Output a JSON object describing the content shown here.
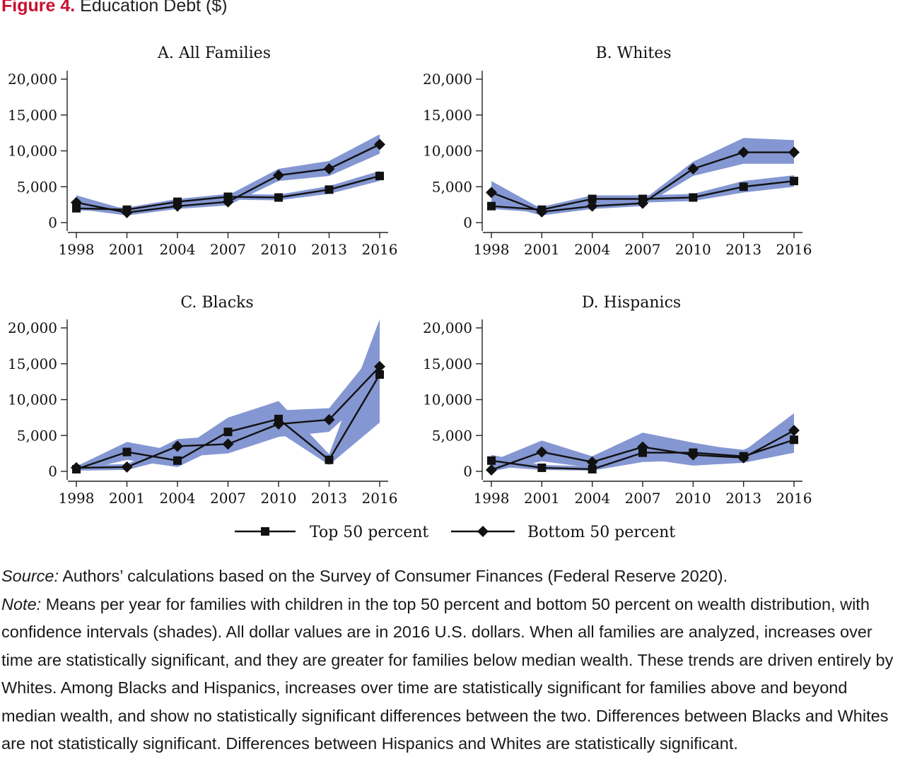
{
  "figure": {
    "label": "Figure 4.",
    "title": "Education Debt ($)"
  },
  "chart_data": [
    {
      "type": "line",
      "title": "A. All Families",
      "x": [
        1998,
        2001,
        2004,
        2007,
        2010,
        2013,
        2016
      ],
      "ylim": [
        0,
        20000
      ],
      "yticks": [
        0,
        5000,
        10000,
        15000,
        20000
      ],
      "ytick_labels": [
        "0",
        "5,000",
        "10,000",
        "15,000",
        "20,000"
      ],
      "series": [
        {
          "name": "Top 50 percent",
          "marker": "square",
          "values": [
            2000,
            1800,
            2900,
            3600,
            3500,
            4600,
            6500
          ],
          "ci_lower": [
            1700,
            1500,
            2500,
            3200,
            3100,
            4000,
            5800
          ],
          "ci_upper": [
            2300,
            2100,
            3300,
            4000,
            3900,
            5100,
            7200
          ]
        },
        {
          "name": "Bottom 50 percent",
          "marker": "diamond",
          "values": [
            2800,
            1400,
            2300,
            2900,
            6600,
            7500,
            10900
          ],
          "ci_lower": [
            1900,
            1000,
            1900,
            2400,
            5800,
            6500,
            9600
          ],
          "ci_upper": [
            3800,
            1800,
            3000,
            3800,
            7500,
            8600,
            12300
          ]
        }
      ]
    },
    {
      "type": "line",
      "title": "B. Whites",
      "x": [
        1998,
        2001,
        2004,
        2007,
        2010,
        2013,
        2016
      ],
      "ylim": [
        0,
        20000
      ],
      "yticks": [
        0,
        5000,
        10000,
        15000,
        20000
      ],
      "ytick_labels": [
        "0",
        "5,000",
        "10,000",
        "15,000",
        "20,000"
      ],
      "series": [
        {
          "name": "Top 50 percent",
          "marker": "square",
          "values": [
            2300,
            1800,
            3300,
            3300,
            3500,
            5000,
            5800
          ],
          "ci_lower": [
            1900,
            1400,
            2800,
            2800,
            3000,
            4200,
            5000
          ],
          "ci_upper": [
            2700,
            2200,
            3800,
            3800,
            4000,
            5800,
            6600
          ]
        },
        {
          "name": "Bottom 50 percent",
          "marker": "diamond",
          "values": [
            4200,
            1500,
            2300,
            2700,
            7500,
            9800,
            9800
          ],
          "ci_lower": [
            2800,
            1000,
            1900,
            2300,
            6500,
            8200,
            8200
          ],
          "ci_upper": [
            5800,
            1900,
            3000,
            3100,
            8500,
            11800,
            11500
          ]
        }
      ]
    },
    {
      "type": "line",
      "title": "C. Blacks",
      "x": [
        1998,
        2001,
        2004,
        2007,
        2010,
        2013,
        2016
      ],
      "ylim": [
        0,
        20000
      ],
      "yticks": [
        0,
        5000,
        10000,
        15000,
        20000
      ],
      "ytick_labels": [
        "0",
        "5,000",
        "10,000",
        "15,000",
        "20,000"
      ],
      "series": [
        {
          "name": "Top 50 percent",
          "marker": "square",
          "values": [
            300,
            2700,
            1500,
            5500,
            7300,
            1600,
            13500
          ],
          "ci_lower": [
            0,
            1600,
            600,
            4000,
            5500,
            900,
            6800
          ],
          "ci_upper": [
            700,
            4100,
            2800,
            7500,
            9800,
            2400,
            21200
          ]
        },
        {
          "name": "Bottom 50 percent",
          "marker": "diamond",
          "values": [
            500,
            600,
            3500,
            3800,
            6600,
            7200,
            14600
          ],
          "ci_lower": [
            100,
            200,
            2000,
            2500,
            4800,
            5500,
            12000
          ],
          "ci_upper": [
            900,
            1000,
            4500,
            5000,
            8500,
            8800,
            17500
          ]
        }
      ]
    },
    {
      "type": "line",
      "title": "D. Hispanics",
      "x": [
        1998,
        2001,
        2004,
        2007,
        2010,
        2013,
        2016
      ],
      "ylim": [
        0,
        20000
      ],
      "yticks": [
        0,
        5000,
        10000,
        15000,
        20000
      ],
      "ytick_labels": [
        "0",
        "5,000",
        "10,000",
        "15,000",
        "20,000"
      ],
      "series": [
        {
          "name": "Top 50 percent",
          "marker": "square",
          "values": [
            1500,
            500,
            300,
            2600,
            2600,
            2100,
            4400
          ],
          "ci_lower": [
            700,
            200,
            100,
            1300,
            1500,
            1200,
            2600
          ],
          "ci_upper": [
            2300,
            900,
            700,
            3900,
            3800,
            3000,
            6200
          ]
        },
        {
          "name": "Bottom 50 percent",
          "marker": "diamond",
          "values": [
            200,
            2700,
            1300,
            3400,
            2300,
            1900,
            5700
          ],
          "ci_lower": [
            0,
            1400,
            500,
            1800,
            800,
            1200,
            3800
          ],
          "ci_upper": [
            1400,
            4300,
            2100,
            5400,
            4000,
            2800,
            8100
          ]
        }
      ]
    }
  ],
  "legend": {
    "items": [
      {
        "label": "Top 50 percent",
        "marker": "square"
      },
      {
        "label": "Bottom 50 percent",
        "marker": "diamond"
      }
    ]
  },
  "caption": {
    "source_label": "Source:",
    "source_text": " Authors’ calculations based on the Survey of Consumer Finances (Federal Reserve 2020).",
    "note_label": "Note:",
    "note_text": " Means per year for families with children in the top 50 percent and bottom 50 percent on wealth distribution, with confidence intervals (shades). All dollar values are in 2016 U.S. dollars. When all families are analyzed, increases over time are statistically significant, and they are greater for families below median wealth. These trends are driven entirely by Whites. Among Blacks and Hispanics, increases over time are statistically significant for families above and beyond median wealth, and show no statistically significant differences between the two. Differences between Blacks and Whites are not statistically significant. Differences between Hispanics and Whites are statistically significant."
  },
  "colors": {
    "ci_band": "#8497d2",
    "line": "#111111",
    "figure_label": "#c8102e"
  }
}
